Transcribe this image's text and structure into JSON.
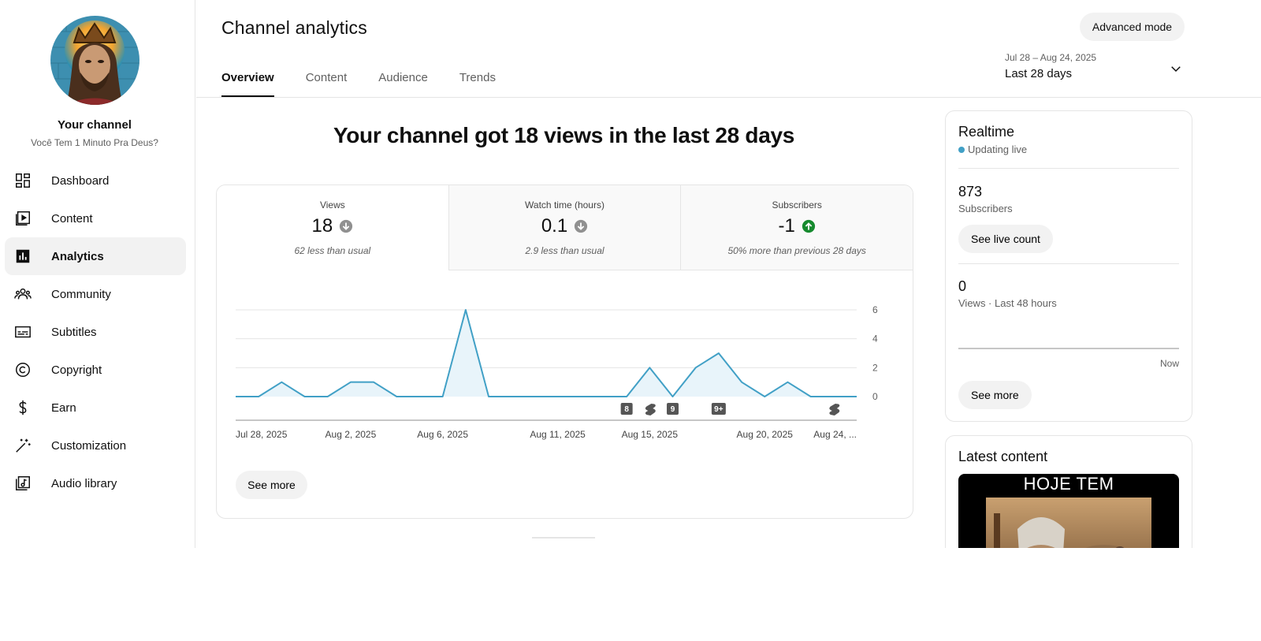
{
  "sidebar": {
    "channel_title": "Your channel",
    "channel_name": "Você Tem 1 Minuto Pra Deus?",
    "items": [
      {
        "label": "Dashboard",
        "icon": "dashboard-icon"
      },
      {
        "label": "Content",
        "icon": "content-icon"
      },
      {
        "label": "Analytics",
        "icon": "analytics-icon",
        "active": true
      },
      {
        "label": "Community",
        "icon": "community-icon"
      },
      {
        "label": "Subtitles",
        "icon": "subtitles-icon"
      },
      {
        "label": "Copyright",
        "icon": "copyright-icon"
      },
      {
        "label": "Earn",
        "icon": "dollar-icon"
      },
      {
        "label": "Customization",
        "icon": "magic-wand-icon"
      },
      {
        "label": "Audio library",
        "icon": "audio-library-icon"
      }
    ]
  },
  "header": {
    "title": "Channel analytics",
    "advanced_mode": "Advanced mode",
    "tabs": [
      {
        "label": "Overview",
        "active": true
      },
      {
        "label": "Content"
      },
      {
        "label": "Audience"
      },
      {
        "label": "Trends"
      }
    ],
    "date_range": "Jul 28 – Aug 24, 2025",
    "date_label": "Last 28 days"
  },
  "overview": {
    "headline": "Your channel got 18 views in the last 28 days",
    "metrics": [
      {
        "label": "Views",
        "value": "18",
        "trend": "down",
        "note": "62 less than usual"
      },
      {
        "label": "Watch time (hours)",
        "value": "0.1",
        "trend": "down",
        "note": "2.9 less than usual"
      },
      {
        "label": "Subscribers",
        "value": "-1",
        "trend": "up",
        "note": "50% more than previous 28 days"
      }
    ],
    "see_more": "See more"
  },
  "chart_data": {
    "type": "area",
    "series": [
      {
        "values": [
          0,
          0,
          1,
          0,
          0,
          1,
          1,
          0,
          0,
          0,
          6,
          0,
          0,
          0,
          0,
          0,
          0,
          0,
          2,
          0,
          2,
          3,
          1,
          0,
          1,
          0,
          0,
          0
        ]
      }
    ],
    "x_tick_labels": [
      "Jul 28, 2025",
      "Aug 2, 2025",
      "Aug 6, 2025",
      "Aug 11, 2025",
      "Aug 15, 2025",
      "Aug 20, 2025",
      "Aug 24, ..."
    ],
    "x_tick_index": [
      0,
      5,
      9,
      14,
      18,
      23,
      27
    ],
    "y_ticks": [
      0,
      2,
      4,
      6
    ],
    "ylim": [
      0,
      6
    ],
    "markers": [
      {
        "index": 17,
        "label": "8"
      },
      {
        "index": 18,
        "label": "",
        "kind": "shorts"
      },
      {
        "index": 19,
        "label": "9"
      },
      {
        "index": 21,
        "label": "9+"
      },
      {
        "index": 26,
        "label": "",
        "kind": "shorts"
      }
    ],
    "colors": {
      "line": "#41a0c6",
      "fill": "#e8f4fa"
    }
  },
  "realtime": {
    "title": "Realtime",
    "live": "Updating live",
    "subscribers": "873",
    "subscribers_label": "Subscribers",
    "see_live": "See live count",
    "views": "0",
    "views_label": "Views · Last 48 hours",
    "now": "Now",
    "see_more": "See more"
  },
  "latest": {
    "title": "Latest content",
    "thumb_text": "HOJE TEM"
  }
}
